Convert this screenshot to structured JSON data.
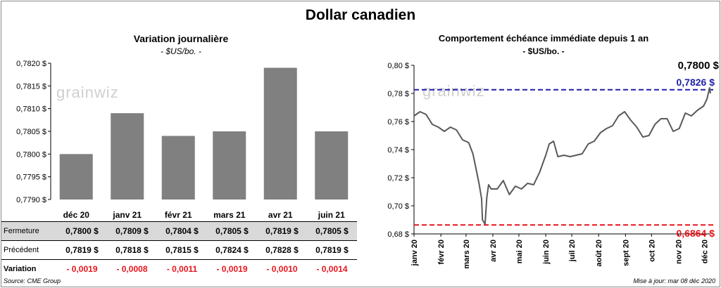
{
  "title": "Dollar canadien",
  "left": {
    "subtitle": "Variation  journalière",
    "unit": "- $US/bo. -",
    "watermark": "grainwiz"
  },
  "right": {
    "subtitle": "Comportement échéance immédiate depuis 1 an",
    "unit": "- $US/bo. -",
    "watermark": "grainwiz"
  },
  "table": {
    "row_labels": {
      "close": "Fermeture",
      "prev": "Précédent",
      "var": "Variation"
    },
    "close": [
      "0,7800  $",
      "0,7809  $",
      "0,7804  $",
      "0,7805  $",
      "0,7819  $",
      "0,7805  $"
    ],
    "prev": [
      "0,7819  $",
      "0,7818  $",
      "0,7815  $",
      "0,7824  $",
      "0,7828  $",
      "0,7819  $"
    ],
    "var": [
      "- 0,0019",
      "- 0,0008",
      "- 0,0011",
      "- 0,0019",
      "- 0,0010",
      "- 0,0014"
    ]
  },
  "footer": {
    "source": "Source: CME Group",
    "updated": "Mise à jour: mar 08 déc 2020"
  },
  "colors": {
    "bar": "#808080",
    "line": "#595959",
    "high_line": "#1f1fa8",
    "low_line": "#e8141b",
    "table_grey": "#d9d9d9"
  },
  "chart_data": [
    {
      "type": "bar",
      "categories": [
        "déc 20",
        "janv 21",
        "févr 21",
        "mars 21",
        "avr 21",
        "juin 21"
      ],
      "values": [
        0.78,
        0.7809,
        0.7804,
        0.7805,
        0.7819,
        0.7805
      ],
      "ylim": [
        0.779,
        0.782
      ],
      "yticks": [
        "0,7790 $",
        "0,7795 $",
        "0,7800 $",
        "0,7805 $",
        "0,7810 $",
        "0,7815 $",
        "0,7820 $"
      ],
      "grid": false
    },
    {
      "type": "line",
      "ylim": [
        0.68,
        0.8
      ],
      "yticks": [
        "0,68 $",
        "0,70 $",
        "0,72 $",
        "0,74 $",
        "0,76 $",
        "0,78 $",
        "0,80 $"
      ],
      "xticks": [
        "janv 20",
        "févr 20",
        "mars 20",
        "avr 20",
        "mai 20",
        "juin 20",
        "juil 20",
        "août 20",
        "sept 20",
        "oct 20",
        "nov 20",
        "déc 20"
      ],
      "x": [
        "2020-01-01",
        "2020-01-08",
        "2020-01-15",
        "2020-01-22",
        "2020-01-29",
        "2020-02-05",
        "2020-02-12",
        "2020-02-19",
        "2020-02-26",
        "2020-03-04",
        "2020-03-09",
        "2020-03-12",
        "2020-03-16",
        "2020-03-19",
        "2020-03-20",
        "2020-03-23",
        "2020-03-25",
        "2020-03-27",
        "2020-03-30",
        "2020-04-06",
        "2020-04-13",
        "2020-04-20",
        "2020-04-27",
        "2020-05-04",
        "2020-05-11",
        "2020-05-18",
        "2020-05-25",
        "2020-06-01",
        "2020-06-05",
        "2020-06-10",
        "2020-06-15",
        "2020-06-22",
        "2020-06-29",
        "2020-07-06",
        "2020-07-13",
        "2020-07-20",
        "2020-07-27",
        "2020-08-03",
        "2020-08-10",
        "2020-08-17",
        "2020-08-24",
        "2020-08-31",
        "2020-09-07",
        "2020-09-14",
        "2020-09-21",
        "2020-09-28",
        "2020-10-05",
        "2020-10-12",
        "2020-10-19",
        "2020-10-26",
        "2020-11-02",
        "2020-11-09",
        "2020-11-16",
        "2020-11-23",
        "2020-11-30",
        "2020-12-04",
        "2020-12-07",
        "2020-12-08"
      ],
      "y": [
        0.764,
        0.767,
        0.765,
        0.758,
        0.756,
        0.753,
        0.756,
        0.754,
        0.747,
        0.745,
        0.737,
        0.728,
        0.716,
        0.705,
        0.69,
        0.687,
        0.706,
        0.715,
        0.712,
        0.712,
        0.718,
        0.708,
        0.714,
        0.712,
        0.716,
        0.715,
        0.724,
        0.736,
        0.744,
        0.746,
        0.735,
        0.736,
        0.735,
        0.736,
        0.737,
        0.744,
        0.746,
        0.752,
        0.755,
        0.757,
        0.764,
        0.767,
        0.761,
        0.756,
        0.749,
        0.75,
        0.758,
        0.762,
        0.762,
        0.753,
        0.755,
        0.766,
        0.764,
        0.768,
        0.771,
        0.776,
        0.784,
        0.78
      ],
      "reference_lines": [
        {
          "value": 0.7826,
          "label": "0,7826  $",
          "style": "dashed",
          "color": "#1f1fa8"
        },
        {
          "value": 0.6864,
          "label": "0,6864  $",
          "style": "dashed",
          "color": "#e8141b"
        }
      ],
      "last_value_label": "0,7800 $",
      "grid": false
    }
  ]
}
